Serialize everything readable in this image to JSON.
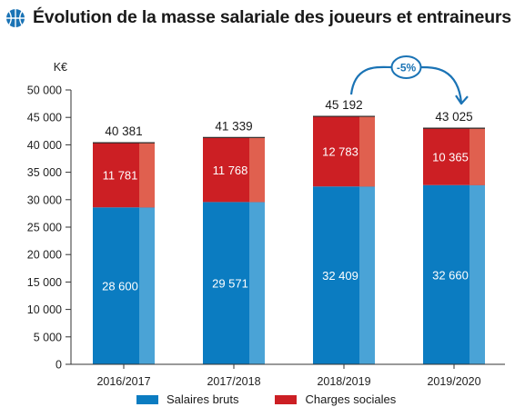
{
  "title": "Évolution de la masse salariale des joueurs et entraineurs",
  "colors": {
    "salaires": "#0b7cc1",
    "salaires_light": "#4aa3d6",
    "charges": "#cc1f24",
    "charges_light": "#e0604f",
    "accent": "#1a73b5"
  },
  "chart_data": {
    "type": "bar",
    "stacked": true,
    "unit_label": "K€",
    "categories": [
      "2016/2017",
      "2017/2018",
      "2018/2019",
      "2019/2020"
    ],
    "series": [
      {
        "name": "Salaires bruts",
        "values": [
          28600,
          29571,
          32409,
          32660
        ]
      },
      {
        "name": "Charges sociales",
        "values": [
          11781,
          11768,
          12783,
          10365
        ]
      }
    ],
    "totals": [
      40381,
      41339,
      45192,
      43025
    ],
    "data_labels": {
      "salaires": [
        "28 600",
        "29 571",
        "32 409",
        "32 660"
      ],
      "charges": [
        "11 781",
        "11 768",
        "12 783",
        "10 365"
      ],
      "totals": [
        "40 381",
        "41 339",
        "45 192",
        "43 025"
      ]
    },
    "ylim": [
      0,
      50000
    ],
    "yticks": [
      0,
      5000,
      10000,
      15000,
      20000,
      25000,
      30000,
      35000,
      40000,
      45000,
      50000
    ],
    "ytick_labels": [
      "0",
      "5 000",
      "10 000",
      "15 000",
      "20 000",
      "25 000",
      "30 000",
      "35 000",
      "40 000",
      "45 000",
      "50 000"
    ],
    "annotation": {
      "text": "-5%",
      "from_category": "2018/2019",
      "to_category": "2019/2020"
    },
    "legend_position": "bottom",
    "grid": false
  }
}
